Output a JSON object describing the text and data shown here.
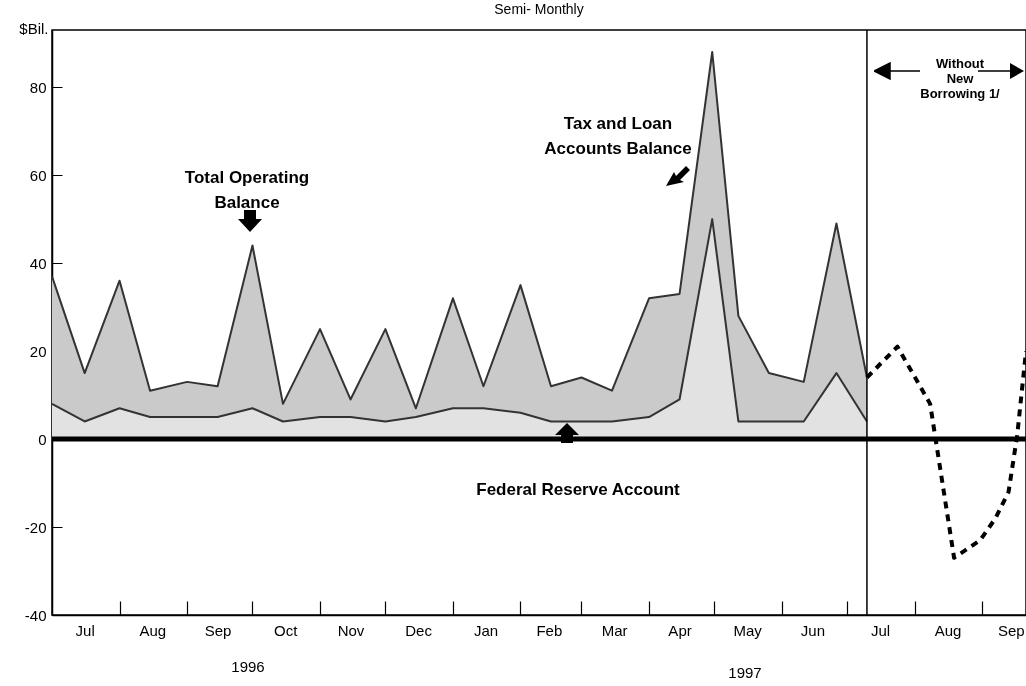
{
  "chart_data": {
    "type": "area",
    "subtitle": "Semi- Monthly",
    "ylabel": "$Bil.",
    "x": [
      "1996-07-01",
      "1996-07-16",
      "1996-08-01",
      "1996-08-15",
      "1996-09-01",
      "1996-09-15",
      "1996-10-01",
      "1996-10-15",
      "1996-11-01",
      "1996-11-15",
      "1996-12-01",
      "1996-12-15",
      "1997-01-01",
      "1997-01-15",
      "1997-02-01",
      "1997-02-15",
      "1997-03-01",
      "1997-03-15",
      "1997-04-01",
      "1997-04-15",
      "1997-04-30",
      "1997-05-12",
      "1997-05-26",
      "1997-06-11",
      "1997-06-26",
      "1997-07-10"
    ],
    "stacked": true,
    "series": [
      {
        "name": "Federal Reserve Account",
        "color": "#e2e2e2",
        "values": [
          8,
          4,
          7,
          5,
          5,
          5,
          7,
          4,
          5,
          5,
          4,
          5,
          7,
          7,
          6,
          4,
          4,
          4,
          5,
          9,
          50,
          4,
          4,
          4,
          15,
          4
        ]
      },
      {
        "name": "Tax and Loan Accounts Balance",
        "color": "#cacaca",
        "values": [
          29,
          11,
          29,
          6,
          8,
          7,
          37,
          4,
          20,
          4,
          21,
          2,
          25,
          5,
          29,
          8,
          10,
          7,
          27,
          24,
          38,
          24,
          11,
          9,
          34,
          10
        ]
      },
      {
        "type": "line",
        "color": "#000000",
        "line_style": "dashed",
        "x": [
          "1997-07-10",
          "1997-07-24",
          "1997-08-08",
          "1997-08-19",
          "1997-08-31",
          "1997-09-07",
          "1997-09-13",
          "1997-09-17",
          "1997-09-21"
        ],
        "values": [
          14,
          21,
          8,
          -27,
          -23,
          -18,
          -12,
          1,
          20
        ]
      }
    ],
    "xlim": [
      "1996-07-01",
      "1997-09-21"
    ],
    "xticks": [
      {
        "value": "1996-07-16",
        "label": "Jul"
      },
      {
        "value": "1996-08-01",
        "label": null
      },
      {
        "value": "1996-08-16",
        "label": "Aug"
      },
      {
        "value": "1996-09-01",
        "label": null
      },
      {
        "value": "1996-09-15",
        "label": "Sep"
      },
      {
        "value": "1996-10-01",
        "label": null
      },
      {
        "value": "1996-10-16",
        "label": "Oct"
      },
      {
        "value": "1996-11-01",
        "label": null
      },
      {
        "value": "1996-11-15",
        "label": "Nov"
      },
      {
        "value": "1996-12-01",
        "label": null
      },
      {
        "value": "1996-12-16",
        "label": "Dec"
      },
      {
        "value": "1997-01-01",
        "label": null
      },
      {
        "value": "1997-01-16",
        "label": "Jan"
      },
      {
        "value": "1997-02-01",
        "label": null
      },
      {
        "value": "1997-02-14",
        "label": "Feb"
      },
      {
        "value": "1997-03-01",
        "label": null
      },
      {
        "value": "1997-03-16",
        "label": "Mar"
      },
      {
        "value": "1997-04-01",
        "label": null
      },
      {
        "value": "1997-04-15",
        "label": "Apr"
      },
      {
        "value": "1997-05-01",
        "label": null
      },
      {
        "value": "1997-05-16",
        "label": "May"
      },
      {
        "value": "1997-06-01",
        "label": null
      },
      {
        "value": "1997-06-15",
        "label": "Jun"
      },
      {
        "value": "1997-07-01",
        "label": null
      },
      {
        "value": "1997-07-16",
        "label": "Jul"
      },
      {
        "value": "1997-08-01",
        "label": null
      },
      {
        "value": "1997-08-16",
        "label": "Aug"
      },
      {
        "value": "1997-09-01",
        "label": null
      },
      {
        "value": "1997-09-14",
        "label": "Sep"
      }
    ],
    "ylim": [
      -40,
      93
    ],
    "yticks": [
      -40,
      -20,
      0,
      20,
      40,
      60,
      80
    ],
    "ref_lines": [
      {
        "axis": "y",
        "value": 0,
        "color": "#000000"
      },
      {
        "axis": "x",
        "value": "1997-07-10",
        "color": "#000000"
      }
    ],
    "annotations": [
      "Total Operating Balance",
      "Without New Borrowing 1/",
      "1996",
      "1997"
    ],
    "grid": false,
    "legend": false
  }
}
